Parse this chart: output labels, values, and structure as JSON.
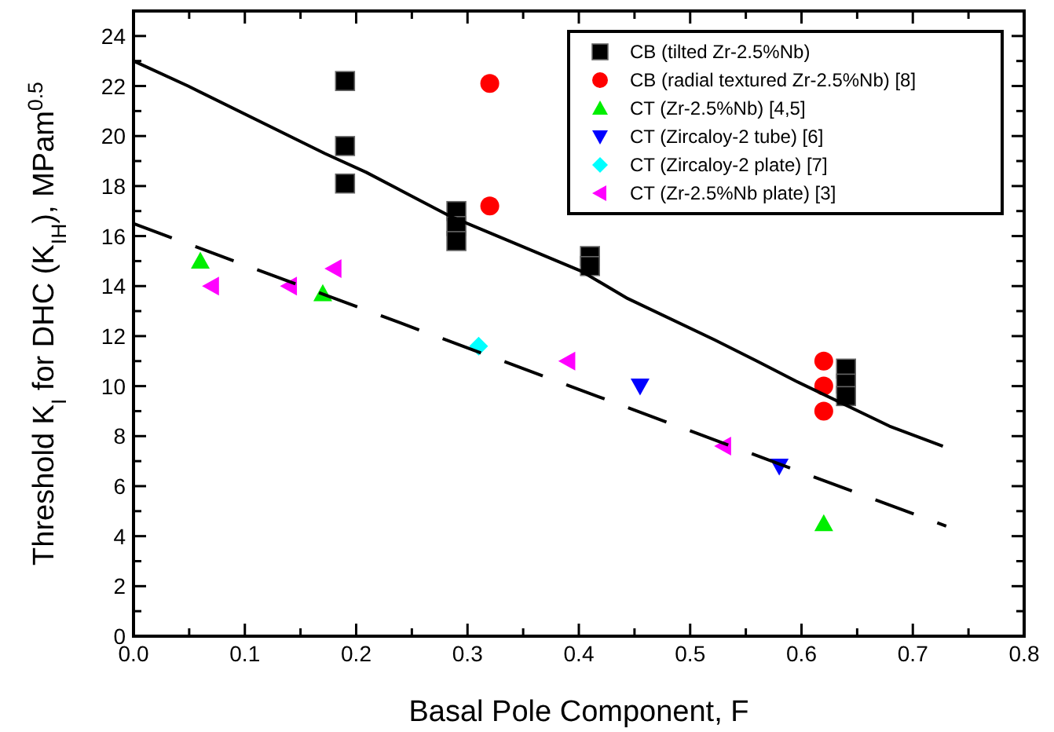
{
  "chart_data": {
    "type": "scatter",
    "xlabel": "Basal Pole Component, F",
    "ylabel": "Threshold K$_{I}$ for DHC (K$_{IH}$), MPam$^{0.5}$",
    "xlim": [
      0,
      0.8
    ],
    "ylim": [
      0,
      25
    ],
    "xticks": [
      {
        "value": 0,
        "label": "0.0"
      },
      {
        "value": 0.05,
        "label": null
      },
      {
        "value": 0.1,
        "label": "0.1"
      },
      {
        "value": 0.15,
        "label": null
      },
      {
        "value": 0.2,
        "label": "0.2"
      },
      {
        "value": 0.25,
        "label": null
      },
      {
        "value": 0.3,
        "label": "0.3"
      },
      {
        "value": 0.35,
        "label": null
      },
      {
        "value": 0.4,
        "label": "0.4"
      },
      {
        "value": 0.45,
        "label": null
      },
      {
        "value": 0.5,
        "label": "0.5"
      },
      {
        "value": 0.55,
        "label": null
      },
      {
        "value": 0.6,
        "label": "0.6"
      },
      {
        "value": 0.65,
        "label": null
      },
      {
        "value": 0.7,
        "label": "0.7"
      },
      {
        "value": 0.75,
        "label": null
      },
      {
        "value": 0.8,
        "label": "0.8"
      }
    ],
    "yticks": [
      0,
      {
        "value": 1,
        "label": null
      },
      2,
      {
        "value": 3,
        "label": null
      },
      4,
      {
        "value": 5,
        "label": null
      },
      6,
      {
        "value": 7,
        "label": null
      },
      8,
      {
        "value": 9,
        "label": null
      },
      10,
      {
        "value": 11,
        "label": null
      },
      12,
      {
        "value": 13,
        "label": null
      },
      14,
      {
        "value": 15,
        "label": null
      },
      16,
      {
        "value": 17,
        "label": null
      },
      18,
      {
        "value": 19,
        "label": null
      },
      20,
      {
        "value": 21,
        "label": null
      },
      22,
      {
        "value": 23,
        "label": null
      },
      24
    ],
    "grid": false,
    "legend": "top right",
    "series": [
      {
        "name": "CB (tilted Zr-2.5%Nb)",
        "color": "#000000",
        "marker": "square",
        "x": [
          0.19,
          0.19,
          0.19,
          0.29,
          0.29,
          0.29,
          0.41,
          0.41,
          0.64,
          0.64,
          0.64
        ],
        "values": [
          22.2,
          19.6,
          18.1,
          17.0,
          16.4,
          15.8,
          15.2,
          14.8,
          10.7,
          10.1,
          9.6
        ]
      },
      {
        "name": "CB (radial textured Zr-2.5%Nb) [8]",
        "color": "#ff0000",
        "marker": "circle",
        "x": [
          0.32,
          0.32,
          0.62,
          0.62,
          0.62
        ],
        "values": [
          22.1,
          17.2,
          11.0,
          10.0,
          9.0
        ]
      },
      {
        "name": "CT (Zr-2.5%Nb) [4,5]",
        "color": "#00ee00",
        "marker": "triangle",
        "x": [
          0.06,
          0.17,
          0.62
        ],
        "values": [
          15.0,
          13.7,
          4.5
        ]
      },
      {
        "name": "CT (Zircaloy-2 tube) [6]",
        "color": "#0000ff",
        "marker": "triangle-down",
        "x": [
          0.455,
          0.58
        ],
        "values": [
          10.0,
          6.8
        ]
      },
      {
        "name": "CT (Zircaloy-2 plate) [7]",
        "color": "#00ffff",
        "marker": "diamond",
        "x": [
          0.31
        ],
        "values": [
          11.6
        ]
      },
      {
        "name": "CT (Zr-2.5%Nb plate) [3]",
        "color": "#ff00ff",
        "marker": "triangle-left",
        "x": [
          0.07,
          0.14,
          0.18,
          0.39,
          0.53
        ],
        "values": [
          14.0,
          14.0,
          14.7,
          11.0,
          7.6
        ]
      },
      {
        "type": "line",
        "color": "#000000",
        "line_style": "solid",
        "x": [
          0,
          0.049,
          0.172,
          0.209,
          0.284,
          0.402,
          0.444,
          0.522,
          0.56,
          0.595,
          0.679,
          0.727
        ],
        "values": [
          23.0,
          22.0,
          19.3,
          18.55,
          16.8,
          14.6,
          13.5,
          11.85,
          11.0,
          10.2,
          8.4,
          7.6
        ]
      },
      {
        "type": "line",
        "color": "#000000",
        "line_style": "dashed",
        "x": [
          0,
          0.73
        ],
        "values": [
          16.5,
          4.4
        ]
      }
    ]
  }
}
